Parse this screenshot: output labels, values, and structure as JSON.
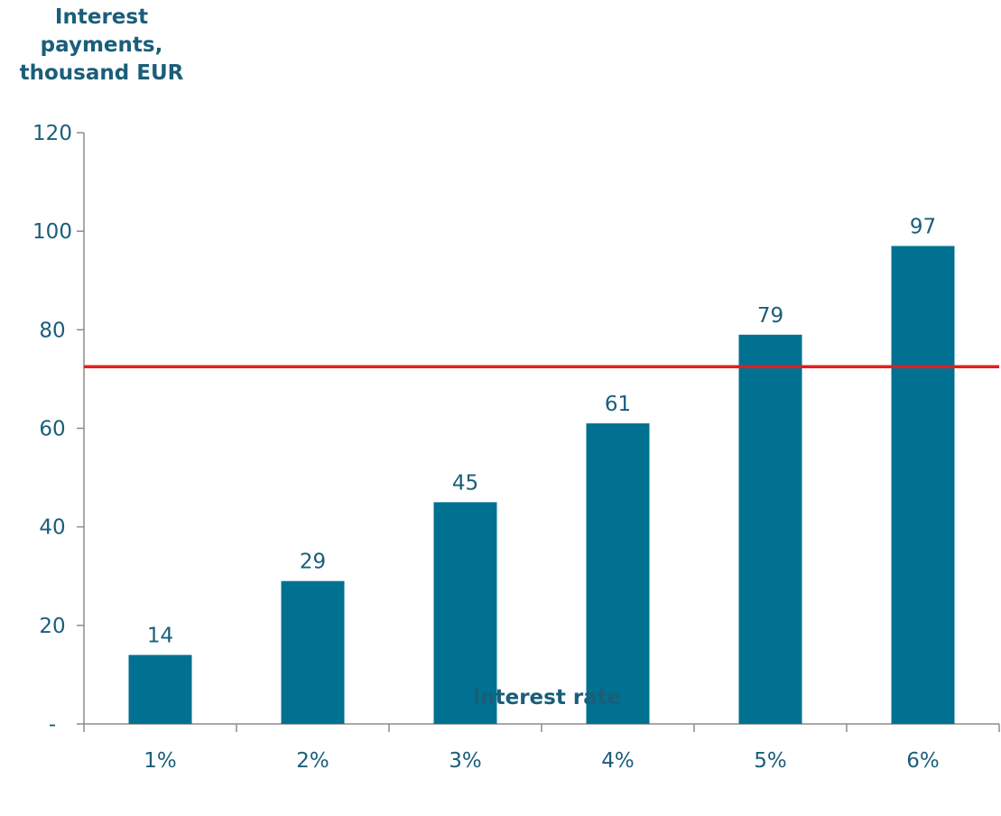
{
  "chart_data": {
    "type": "bar",
    "ylabel": "Interest payments, thousand EUR",
    "xlabel": "Interest rate",
    "categories": [
      "1%",
      "2%",
      "3%",
      "4%",
      "5%",
      "6%"
    ],
    "values": [
      14,
      29,
      45,
      61,
      79,
      97
    ],
    "data_labels": [
      "14",
      "29",
      "45",
      "61",
      "79",
      "97"
    ],
    "ylim": [
      0,
      120
    ],
    "yticks": [
      0,
      20,
      40,
      60,
      80,
      100,
      120
    ],
    "ytick_labels": [
      "-",
      "20",
      "40",
      "60",
      "80",
      "100",
      "120"
    ],
    "grid": false,
    "reference_line": {
      "y": 72.5,
      "color": "#e02020"
    },
    "colors": {
      "bar": "#007190",
      "text": "#1a5e7a",
      "axis": "#8c8c8c"
    }
  }
}
